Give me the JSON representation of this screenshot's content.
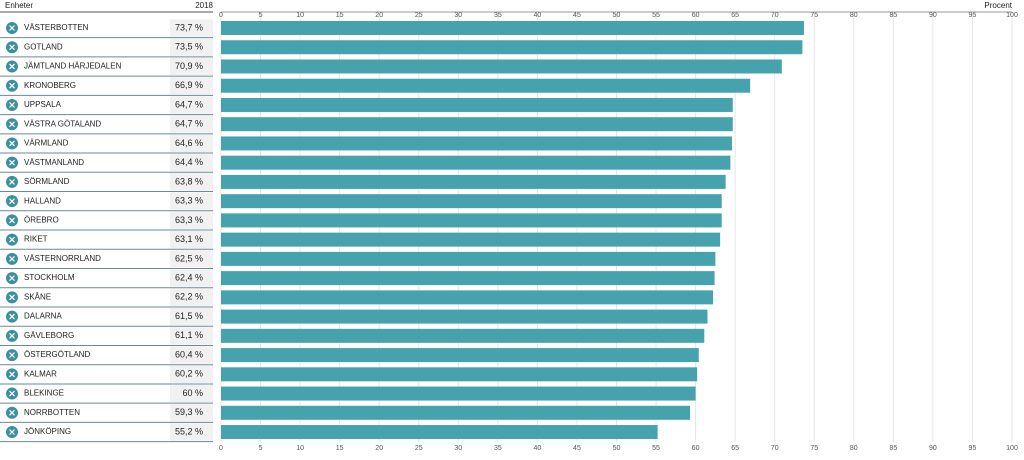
{
  "chart_data": {
    "type": "bar",
    "orientation": "horizontal",
    "category_header": "Enheter",
    "value_header": "2018",
    "x_label": "Procent",
    "categories": [
      "VÄSTERBOTTEN",
      "GOTLAND",
      "JÄMTLAND HÄRJEDALEN",
      "KRONOBERG",
      "UPPSALA",
      "VÄSTRA GÖTALAND",
      "VÄRMLAND",
      "VÄSTMANLAND",
      "SÖRMLAND",
      "HALLAND",
      "ÖREBRO",
      "RIKET",
      "VÄSTERNORRLAND",
      "STOCKHOLM",
      "SKÅNE",
      "DALARNA",
      "GÄVLEBORG",
      "ÖSTERGÖTLAND",
      "KALMAR",
      "BLEKINGE",
      "NORRBOTTEN",
      "JÖNKÖPING"
    ],
    "values": [
      73.7,
      73.5,
      70.9,
      66.9,
      64.7,
      64.7,
      64.6,
      64.4,
      63.8,
      63.3,
      63.3,
      63.1,
      62.5,
      62.4,
      62.2,
      61.5,
      61.1,
      60.4,
      60.2,
      60,
      59.3,
      55.2
    ],
    "value_labels": [
      "73,7 %",
      "73,5 %",
      "70,9 %",
      "66,9 %",
      "64,7 %",
      "64,7 %",
      "64,6 %",
      "64,4 %",
      "63,8 %",
      "63,3 %",
      "63,3 %",
      "63,1 %",
      "62,5 %",
      "62,4 %",
      "62,2 %",
      "61,5 %",
      "61,1 %",
      "60,4 %",
      "60,2 %",
      "60 %",
      "59,3 %",
      "55,2 %"
    ],
    "color": "#46a3ae",
    "xlim": [
      0,
      100
    ],
    "xticks": [
      0,
      5,
      10,
      15,
      20,
      25,
      30,
      35,
      40,
      45,
      50,
      55,
      60,
      65,
      70,
      75,
      80,
      85,
      90,
      95,
      100
    ],
    "grid": true
  }
}
